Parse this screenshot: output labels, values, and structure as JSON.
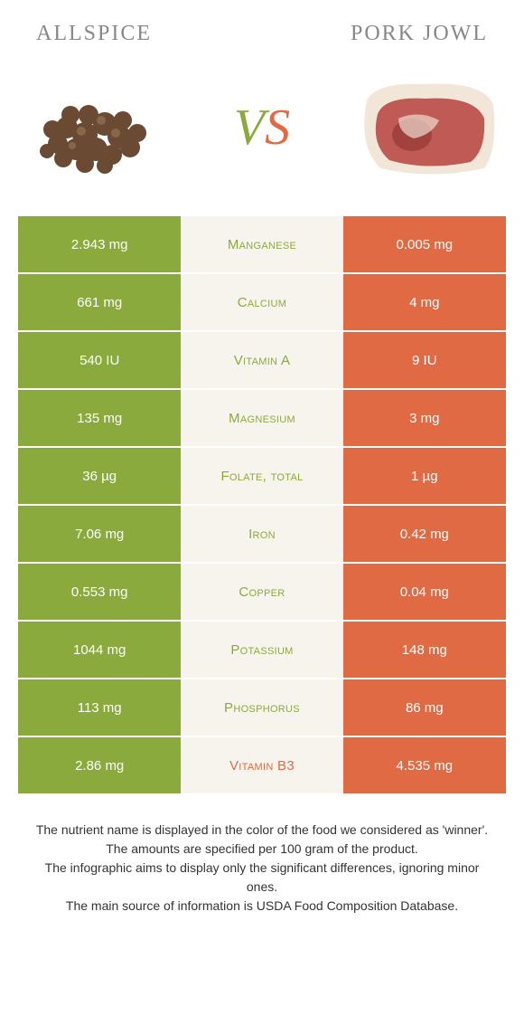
{
  "colors": {
    "left_bg": "#8baa3d",
    "right_bg": "#e06a44",
    "mid_bg": "#f7f4ed",
    "mid_text_left_win": "#8baa3d",
    "mid_text_right_win": "#e06a44",
    "header_text": "#888888"
  },
  "header": {
    "left": "Allspice",
    "right": "Pork jowl"
  },
  "vs": {
    "v": "V",
    "s": "S"
  },
  "rows": [
    {
      "left": "2.943 mg",
      "label": "Manganese",
      "right": "0.005 mg",
      "winner": "left"
    },
    {
      "left": "661 mg",
      "label": "Calcium",
      "right": "4 mg",
      "winner": "left"
    },
    {
      "left": "540 IU",
      "label": "Vitamin A",
      "right": "9 IU",
      "winner": "left"
    },
    {
      "left": "135 mg",
      "label": "Magnesium",
      "right": "3 mg",
      "winner": "left"
    },
    {
      "left": "36 µg",
      "label": "Folate, total",
      "right": "1 µg",
      "winner": "left"
    },
    {
      "left": "7.06 mg",
      "label": "Iron",
      "right": "0.42 mg",
      "winner": "left"
    },
    {
      "left": "0.553 mg",
      "label": "Copper",
      "right": "0.04 mg",
      "winner": "left"
    },
    {
      "left": "1044 mg",
      "label": "Potassium",
      "right": "148 mg",
      "winner": "left"
    },
    {
      "left": "113 mg",
      "label": "Phosphorus",
      "right": "86 mg",
      "winner": "left"
    },
    {
      "left": "2.86 mg",
      "label": "Vitamin B3",
      "right": "4.535 mg",
      "winner": "right"
    }
  ],
  "notes": [
    "The nutrient name is displayed in the color of the food we considered as 'winner'.",
    "The amounts are specified per 100 gram of the product.",
    "The infographic aims to display only the significant differences, ignoring minor ones.",
    "The main source of information is USDA Food Composition Database."
  ]
}
